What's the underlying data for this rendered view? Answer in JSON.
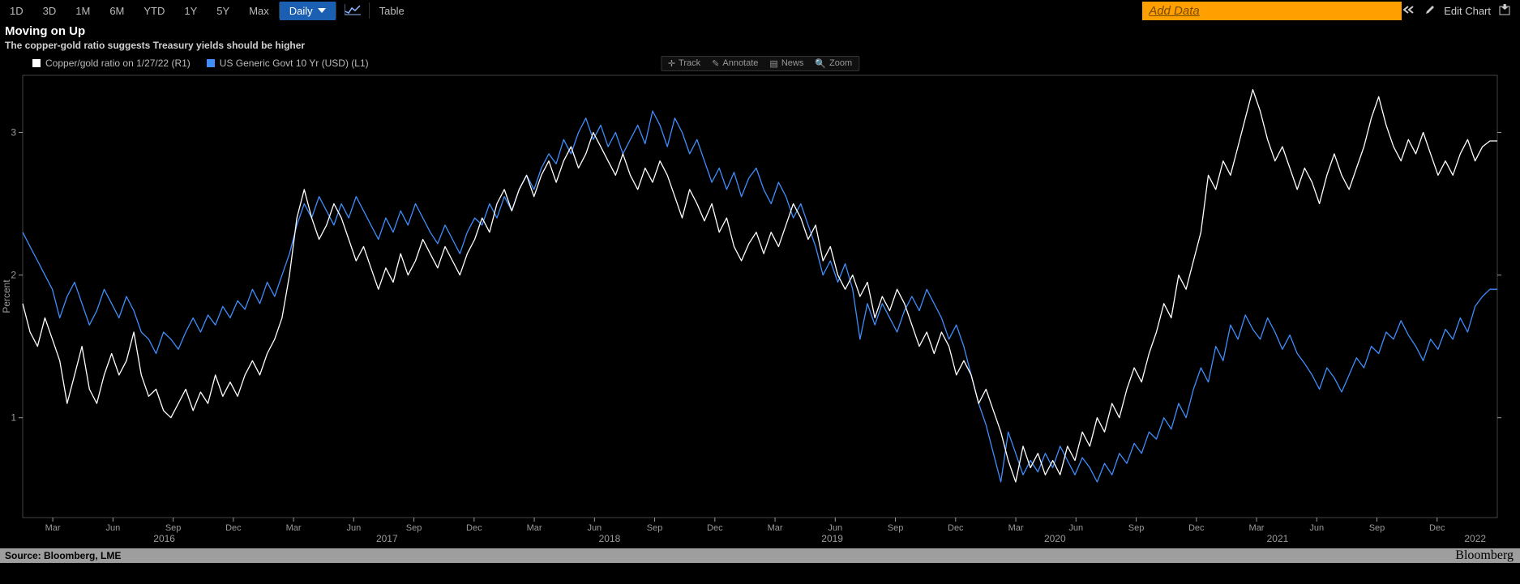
{
  "toolbar": {
    "ranges": [
      "1D",
      "3D",
      "1M",
      "6M",
      "YTD",
      "1Y",
      "5Y",
      "Max"
    ],
    "freq_selected": "Daily",
    "table_label": "Table",
    "add_data_label": "Add Data",
    "edit_chart_label": "Edit Chart"
  },
  "titles": {
    "main": "Moving on Up",
    "sub": "The copper-gold ratio suggests Treasury yields should be higher"
  },
  "legend": {
    "series1": {
      "label": "Copper/gold ratio on 1/27/22 (R1)",
      "color": "#ffffff"
    },
    "series2": {
      "label": "US Generic Govt 10 Yr (USD)  (L1)",
      "color": "#3f8efc"
    }
  },
  "mid_toolbar": {
    "track": "Track",
    "annotate": "Annotate",
    "news": "News",
    "zoom": "Zoom"
  },
  "chart": {
    "type": "line",
    "background": "#000000",
    "plot_border_color": "#444444",
    "axis_text_color": "#9a9a9a",
    "ylabel": "Percent",
    "y_left": {
      "min": 0.3,
      "max": 3.4,
      "ticks": [
        1,
        2,
        3
      ]
    },
    "y_right": {
      "min": 0.3,
      "max": 3.4
    },
    "x_ticks_minor": [
      "Mar",
      "Jun",
      "Sep",
      "Dec",
      "Mar",
      "Jun",
      "Sep",
      "Dec",
      "Mar",
      "Jun",
      "Sep",
      "Dec",
      "Mar",
      "Jun",
      "Sep",
      "Dec",
      "Mar",
      "Jun",
      "Sep",
      "Dec",
      "Mar",
      "Jun",
      "Sep",
      "Dec"
    ],
    "x_ticks_major": [
      "2016",
      "2017",
      "2018",
      "2019",
      "2020",
      "2021",
      "2022"
    ],
    "x_major_positions": [
      0.096,
      0.247,
      0.398,
      0.549,
      0.7,
      0.851,
      0.985
    ],
    "line_width": 1.3,
    "series": {
      "copper_gold": {
        "color": "#ffffff",
        "y": [
          1.8,
          1.6,
          1.5,
          1.7,
          1.55,
          1.4,
          1.1,
          1.3,
          1.5,
          1.2,
          1.1,
          1.3,
          1.45,
          1.3,
          1.4,
          1.6,
          1.3,
          1.15,
          1.2,
          1.05,
          1.0,
          1.1,
          1.2,
          1.05,
          1.18,
          1.1,
          1.3,
          1.15,
          1.25,
          1.15,
          1.3,
          1.4,
          1.3,
          1.45,
          1.55,
          1.7,
          2.0,
          2.4,
          2.6,
          2.4,
          2.25,
          2.35,
          2.5,
          2.4,
          2.25,
          2.1,
          2.2,
          2.05,
          1.9,
          2.05,
          1.95,
          2.15,
          2.0,
          2.1,
          2.25,
          2.15,
          2.05,
          2.2,
          2.1,
          2.0,
          2.15,
          2.25,
          2.4,
          2.3,
          2.5,
          2.6,
          2.45,
          2.6,
          2.7,
          2.55,
          2.7,
          2.8,
          2.65,
          2.8,
          2.9,
          2.75,
          2.85,
          3.0,
          2.9,
          2.8,
          2.7,
          2.85,
          2.7,
          2.6,
          2.75,
          2.65,
          2.8,
          2.7,
          2.55,
          2.4,
          2.6,
          2.5,
          2.38,
          2.5,
          2.3,
          2.4,
          2.2,
          2.1,
          2.22,
          2.3,
          2.15,
          2.3,
          2.2,
          2.35,
          2.5,
          2.4,
          2.25,
          2.35,
          2.1,
          2.2,
          2.0,
          1.9,
          2.0,
          1.85,
          1.95,
          1.7,
          1.85,
          1.75,
          1.9,
          1.8,
          1.65,
          1.5,
          1.6,
          1.45,
          1.6,
          1.5,
          1.3,
          1.4,
          1.3,
          1.1,
          1.2,
          1.05,
          0.9,
          0.7,
          0.55,
          0.8,
          0.65,
          0.75,
          0.6,
          0.7,
          0.6,
          0.8,
          0.7,
          0.9,
          0.8,
          1.0,
          0.9,
          1.1,
          1.0,
          1.2,
          1.35,
          1.25,
          1.45,
          1.6,
          1.8,
          1.7,
          2.0,
          1.9,
          2.1,
          2.3,
          2.7,
          2.6,
          2.8,
          2.7,
          2.9,
          3.1,
          3.3,
          3.15,
          2.95,
          2.8,
          2.9,
          2.75,
          2.6,
          2.75,
          2.65,
          2.5,
          2.7,
          2.85,
          2.7,
          2.6,
          2.75,
          2.9,
          3.1,
          3.25,
          3.05,
          2.9,
          2.8,
          2.95,
          2.85,
          3.0,
          2.85,
          2.7,
          2.8,
          2.7,
          2.85,
          2.95,
          2.8,
          2.9,
          2.94,
          2.94
        ]
      },
      "ust10y": {
        "color": "#3f8efc",
        "y": [
          2.3,
          2.2,
          2.1,
          2.0,
          1.9,
          1.7,
          1.85,
          1.95,
          1.8,
          1.65,
          1.75,
          1.9,
          1.8,
          1.7,
          1.85,
          1.75,
          1.6,
          1.55,
          1.45,
          1.6,
          1.55,
          1.48,
          1.6,
          1.7,
          1.6,
          1.72,
          1.65,
          1.78,
          1.7,
          1.82,
          1.76,
          1.9,
          1.8,
          1.95,
          1.85,
          2.0,
          2.15,
          2.35,
          2.5,
          2.4,
          2.55,
          2.45,
          2.35,
          2.5,
          2.4,
          2.55,
          2.45,
          2.35,
          2.25,
          2.4,
          2.3,
          2.45,
          2.35,
          2.5,
          2.4,
          2.3,
          2.22,
          2.35,
          2.25,
          2.15,
          2.3,
          2.4,
          2.35,
          2.5,
          2.4,
          2.55,
          2.45,
          2.6,
          2.7,
          2.6,
          2.75,
          2.85,
          2.78,
          2.95,
          2.85,
          3.0,
          3.1,
          2.95,
          3.05,
          2.9,
          3.0,
          2.85,
          2.95,
          3.05,
          2.92,
          3.15,
          3.05,
          2.9,
          3.1,
          3.0,
          2.85,
          2.95,
          2.8,
          2.65,
          2.75,
          2.6,
          2.72,
          2.55,
          2.68,
          2.75,
          2.6,
          2.5,
          2.65,
          2.55,
          2.4,
          2.5,
          2.35,
          2.2,
          2.0,
          2.1,
          1.95,
          2.08,
          1.9,
          1.55,
          1.8,
          1.65,
          1.8,
          1.7,
          1.6,
          1.75,
          1.85,
          1.75,
          1.9,
          1.8,
          1.7,
          1.55,
          1.65,
          1.5,
          1.3,
          1.1,
          0.95,
          0.75,
          0.55,
          0.9,
          0.75,
          0.6,
          0.7,
          0.62,
          0.75,
          0.65,
          0.8,
          0.7,
          0.6,
          0.72,
          0.65,
          0.55,
          0.68,
          0.6,
          0.75,
          0.68,
          0.82,
          0.75,
          0.9,
          0.85,
          1.0,
          0.92,
          1.1,
          1.0,
          1.2,
          1.35,
          1.25,
          1.5,
          1.4,
          1.65,
          1.55,
          1.72,
          1.62,
          1.55,
          1.7,
          1.6,
          1.48,
          1.58,
          1.45,
          1.38,
          1.3,
          1.2,
          1.35,
          1.28,
          1.18,
          1.3,
          1.42,
          1.35,
          1.5,
          1.45,
          1.6,
          1.55,
          1.68,
          1.58,
          1.5,
          1.4,
          1.55,
          1.48,
          1.62,
          1.55,
          1.7,
          1.6,
          1.78,
          1.85,
          1.9,
          1.9
        ]
      }
    }
  },
  "footer": {
    "source": "Source: Bloomberg, LME",
    "brand": "Bloomberg"
  }
}
